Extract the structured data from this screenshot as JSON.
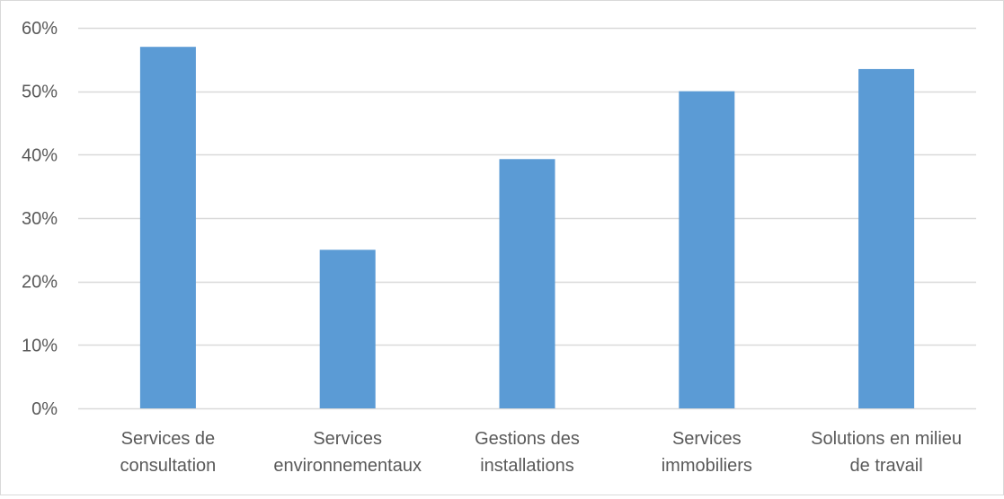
{
  "chart_data": {
    "type": "bar",
    "categories": [
      [
        "Services de",
        "consultation"
      ],
      [
        "Services",
        "environnementaux"
      ],
      [
        "Gestions des",
        "installations"
      ],
      [
        "Services",
        "immobiliers"
      ],
      [
        "Solutions en milieu",
        "de travail"
      ]
    ],
    "values": [
      57,
      25,
      39.3,
      50,
      53.5
    ],
    "value_unit": "%",
    "ylim": [
      0,
      60
    ],
    "yticks": [
      0,
      10,
      20,
      30,
      40,
      50,
      60
    ],
    "ytick_labels": [
      "0%",
      "10%",
      "20%",
      "30%",
      "40%",
      "50%",
      "60%"
    ],
    "grid": true,
    "legend": "none",
    "title": "",
    "xlabel": "",
    "ylabel": "",
    "colors": {
      "bar": "#5b9bd5",
      "grid": "#d9d9d9",
      "text": "#595959",
      "border": "#d9d9d9"
    }
  }
}
